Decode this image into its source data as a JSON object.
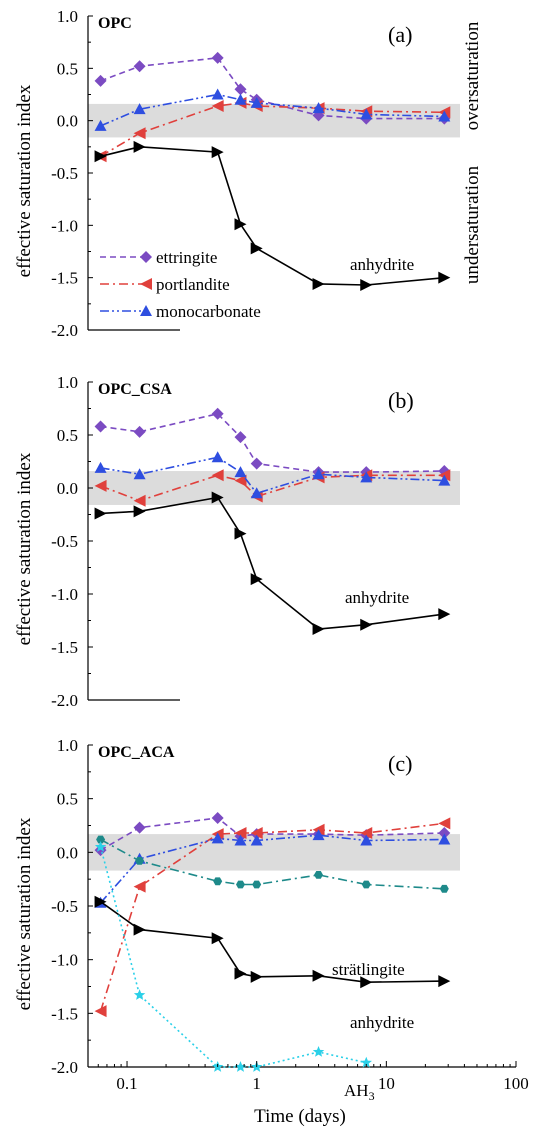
{
  "chart_data": [
    {
      "type": "line",
      "title": "OPC",
      "panel_label": "(a)",
      "ylabel": "effective saturation index",
      "ylim": [
        -2.0,
        1.0
      ],
      "yticks": [
        "1.0",
        "0.5",
        "0.0",
        "-0.5",
        "-1.0",
        "-1.5",
        "-2.0"
      ],
      "xscale": "log",
      "band": [
        -0.16,
        0.16
      ],
      "side_labels": [
        "oversaturation",
        "undersaturation"
      ],
      "series": [
        {
          "name": "ettringite",
          "marker": "diamond",
          "dash": "dash",
          "color": "#7b4bc2",
          "x": [
            0.0625,
            0.125,
            0.5,
            0.75,
            1,
            3,
            7,
            28
          ],
          "y": [
            0.38,
            0.52,
            0.6,
            0.3,
            0.2,
            0.05,
            0.02,
            0.02
          ]
        },
        {
          "name": "portlandite",
          "marker": "tri-left",
          "dash": "dashdot",
          "color": "#e0403c",
          "x": [
            0.0625,
            0.125,
            0.5,
            0.75,
            1,
            3,
            7,
            28
          ],
          "y": [
            -0.34,
            -0.12,
            0.14,
            0.17,
            0.14,
            0.12,
            0.09,
            0.08
          ]
        },
        {
          "name": "monocarbonate",
          "marker": "tri-up",
          "dash": "dashdotdot",
          "color": "#2e4ee0",
          "x": [
            0.0625,
            0.125,
            0.5,
            0.75,
            1,
            3,
            7,
            28
          ],
          "y": [
            -0.05,
            0.11,
            0.25,
            0.2,
            0.17,
            0.12,
            0.06,
            0.04
          ]
        },
        {
          "name": "anhydrite",
          "marker": "tri-right",
          "dash": "solid",
          "color": "#000000",
          "x": [
            0.0625,
            0.125,
            0.5,
            0.75,
            1,
            3,
            7,
            28
          ],
          "y": [
            -0.34,
            -0.25,
            -0.3,
            -0.99,
            -1.22,
            -1.56,
            -1.57,
            -1.5
          ]
        }
      ],
      "legend": [
        "ettringite",
        "portlandite",
        "monocarbonate"
      ],
      "annotations": [
        "anhydrite"
      ]
    },
    {
      "type": "line",
      "title": "OPC_CSA",
      "panel_label": "(b)",
      "ylabel": "effective saturation index",
      "ylim": [
        -2.0,
        1.0
      ],
      "yticks": [
        "1.0",
        "0.5",
        "0.0",
        "-0.5",
        "-1.0",
        "-1.5",
        "-2.0"
      ],
      "xscale": "log",
      "band": [
        -0.16,
        0.16
      ],
      "series": [
        {
          "name": "ettringite",
          "marker": "diamond",
          "dash": "dash",
          "color": "#7b4bc2",
          "x": [
            0.0625,
            0.125,
            0.5,
            0.75,
            1,
            3,
            7,
            28
          ],
          "y": [
            0.58,
            0.53,
            0.7,
            0.48,
            0.23,
            0.15,
            0.15,
            0.16
          ]
        },
        {
          "name": "portlandite",
          "marker": "tri-left",
          "dash": "dashdot",
          "color": "#e0403c",
          "x": [
            0.0625,
            0.125,
            0.5,
            0.75,
            1,
            3,
            7,
            28
          ],
          "y": [
            0.02,
            -0.12,
            0.12,
            0.07,
            -0.08,
            0.1,
            0.12,
            0.12
          ]
        },
        {
          "name": "monocarbonate",
          "marker": "tri-up",
          "dash": "dashdotdot",
          "color": "#2e4ee0",
          "x": [
            0.0625,
            0.125,
            0.5,
            0.75,
            1,
            3,
            7,
            28
          ],
          "y": [
            0.19,
            0.13,
            0.29,
            0.15,
            -0.05,
            0.13,
            0.1,
            0.07
          ]
        },
        {
          "name": "anhydrite",
          "marker": "tri-right",
          "dash": "solid",
          "color": "#000000",
          "x": [
            0.0625,
            0.125,
            0.5,
            0.75,
            1,
            3,
            7,
            28
          ],
          "y": [
            -0.24,
            -0.22,
            -0.09,
            -0.43,
            -0.86,
            -1.33,
            -1.29,
            -1.19
          ]
        }
      ],
      "annotations": [
        "anhydrite"
      ]
    },
    {
      "type": "line",
      "title": "OPC_ACA",
      "panel_label": "(c)",
      "ylabel": "effective saturation index",
      "xlabel": "Time (days)",
      "ylim": [
        -2.0,
        1.0
      ],
      "yticks": [
        "1.0",
        "0.5",
        "0.0",
        "-0.5",
        "-1.0",
        "-1.5",
        "-2.0"
      ],
      "xscale": "log",
      "xlim": [
        0.05,
        100
      ],
      "xticks": [
        "0.1",
        "1",
        "10",
        "100"
      ],
      "band": [
        -0.17,
        0.17
      ],
      "series": [
        {
          "name": "ettringite",
          "marker": "diamond",
          "dash": "dash",
          "color": "#7b4bc2",
          "x": [
            0.0625,
            0.125,
            0.5,
            0.75,
            1,
            3,
            7,
            28
          ],
          "y": [
            0.02,
            0.23,
            0.32,
            0.15,
            0.17,
            0.17,
            0.16,
            0.18
          ]
        },
        {
          "name": "portlandite",
          "marker": "tri-left",
          "dash": "dashdot",
          "color": "#e0403c",
          "x": [
            0.0625,
            0.125,
            0.5,
            0.75,
            1,
            3,
            7,
            28
          ],
          "y": [
            -1.48,
            -0.32,
            0.17,
            0.18,
            0.18,
            0.21,
            0.18,
            0.27
          ]
        },
        {
          "name": "monocarbonate",
          "marker": "tri-up",
          "dash": "dashdotdot",
          "color": "#2e4ee0",
          "x": [
            0.0625,
            0.125,
            0.5,
            0.75,
            1,
            3,
            7,
            28
          ],
          "y": [
            -0.47,
            -0.06,
            0.13,
            0.11,
            0.11,
            0.16,
            0.11,
            0.12
          ]
        },
        {
          "name": "strätlingite",
          "marker": "hexagon",
          "dash": "dashdot",
          "color": "#1e8a8a",
          "x": [
            0.0625,
            0.125,
            0.5,
            0.75,
            1,
            3,
            7,
            28
          ],
          "y": [
            0.12,
            -0.08,
            -0.27,
            -0.3,
            -0.3,
            -0.21,
            -0.3,
            -0.34
          ]
        },
        {
          "name": "anhydrite",
          "marker": "tri-right",
          "dash": "solid",
          "color": "#000000",
          "x": [
            0.0625,
            0.125,
            0.5,
            0.75,
            1,
            3,
            7,
            28
          ],
          "y": [
            -0.46,
            -0.72,
            -0.8,
            -1.13,
            -1.16,
            -1.15,
            -1.21,
            -1.2
          ]
        },
        {
          "name": "AH3",
          "marker": "star",
          "dash": "dot",
          "color": "#2ad0e8",
          "x": [
            0.0625,
            0.125,
            0.5,
            0.75,
            1,
            3,
            7
          ],
          "y": [
            0.05,
            -1.33,
            -2.0,
            -2.0,
            -2.0,
            -1.86,
            -1.96
          ]
        }
      ],
      "annotations": [
        "strätlingite",
        "anhydrite",
        "AH3"
      ]
    }
  ]
}
